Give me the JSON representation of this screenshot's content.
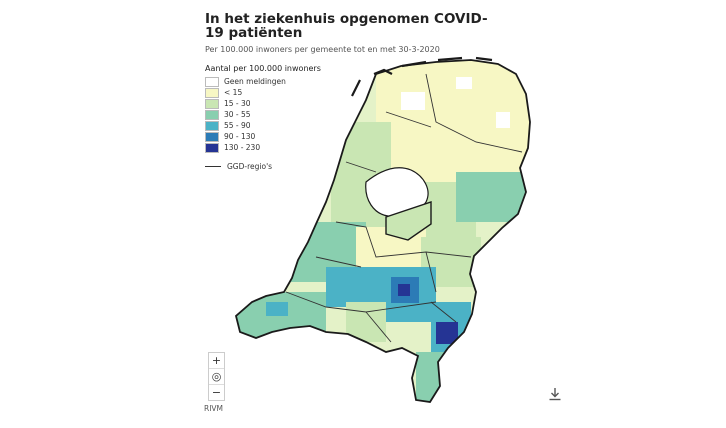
{
  "title": "In het ziekenhuis opgenomen COVID-19 patiënten",
  "subtitle": "Per 100.000 inwoners per gemeente tot en met 30-3-2020",
  "legend": {
    "title": "Aantal per 100.000 inwoners",
    "items": [
      {
        "label": "Geen meldingen",
        "color": "#ffffff"
      },
      {
        "label": "< 15",
        "color": "#f7f7c4"
      },
      {
        "label": "15 - 30",
        "color": "#c9e6b3"
      },
      {
        "label": "30 - 55",
        "color": "#89cfaf"
      },
      {
        "label": "55 - 90",
        "color": "#4bb2c6"
      },
      {
        "label": "90 - 130",
        "color": "#2c7bb6"
      },
      {
        "label": "130 - 230",
        "color": "#253494"
      }
    ],
    "boundary_label": "GGD-regio's"
  },
  "controls": {
    "zoom_in": "+",
    "reset": "◎",
    "zoom_out": "−"
  },
  "source": "RIVM",
  "icons": {
    "download": "download-icon",
    "zoom_in": "plus-icon",
    "reset": "target-icon",
    "zoom_out": "minus-icon"
  },
  "colors": {
    "boundary": "#1a1a1a",
    "water": "#ffffff"
  }
}
